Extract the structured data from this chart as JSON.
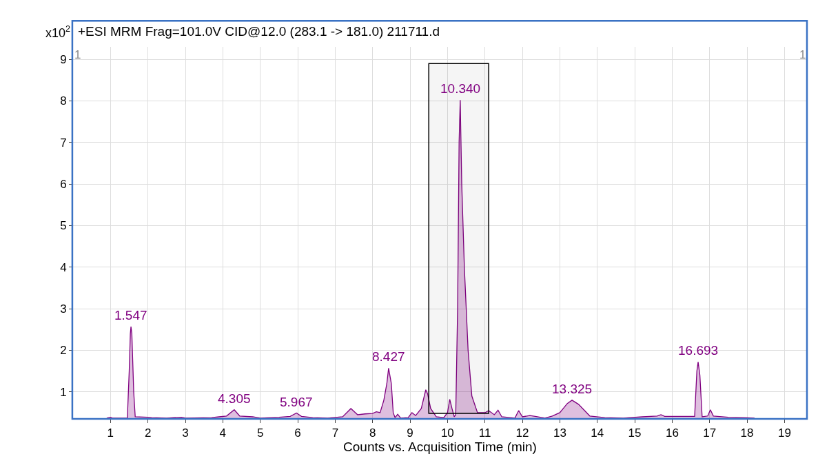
{
  "chart_data": {
    "type": "area",
    "title": "+ESI MRM Frag=101.0V CID@12.0 (283.1 -> 181.0) 211711.d",
    "xlabel": "Counts vs. Acquisition Time (min)",
    "ylabel": "x10$^{2}$",
    "x": [
      0.9,
      1.0,
      1.05,
      1.45,
      1.5,
      1.53,
      1.547,
      1.57,
      1.62,
      1.66,
      2.0,
      2.1,
      2.5,
      2.9,
      3.0,
      3.7,
      3.9,
      4.1,
      4.305,
      4.45,
      4.8,
      5.0,
      5.5,
      5.8,
      5.967,
      6.1,
      6.4,
      6.8,
      7.2,
      7.42,
      7.6,
      7.8,
      8.0,
      8.1,
      8.2,
      8.3,
      8.38,
      8.427,
      8.5,
      8.55,
      8.6,
      8.67,
      8.75,
      8.95,
      9.05,
      9.15,
      9.3,
      9.42,
      9.47,
      9.55,
      9.7,
      9.9,
      10.0,
      10.06,
      10.12,
      10.18,
      10.22,
      10.27,
      10.31,
      10.34,
      10.38,
      10.45,
      10.55,
      10.65,
      10.8,
      11.0,
      11.1,
      11.25,
      11.35,
      11.45,
      11.8,
      11.9,
      12.0,
      12.2,
      12.4,
      12.6,
      12.8,
      13.0,
      13.2,
      13.325,
      13.5,
      13.8,
      14.2,
      14.7,
      15.2,
      15.6,
      15.7,
      15.8,
      16.6,
      16.66,
      16.693,
      16.74,
      16.8,
      16.95,
      17.02,
      17.1,
      17.5,
      17.9,
      18.2
    ],
    "series": [
      {
        "color": "#800080",
        "values": [
          0.37,
          0.39,
          0.37,
          0.37,
          1.5,
          2.4,
          2.57,
          2.4,
          1.0,
          0.4,
          0.39,
          0.38,
          0.37,
          0.39,
          0.37,
          0.38,
          0.4,
          0.42,
          0.57,
          0.42,
          0.4,
          0.37,
          0.39,
          0.41,
          0.49,
          0.41,
          0.38,
          0.37,
          0.4,
          0.6,
          0.45,
          0.47,
          0.48,
          0.52,
          0.5,
          0.8,
          1.2,
          1.57,
          1.2,
          0.5,
          0.38,
          0.46,
          0.37,
          0.38,
          0.5,
          0.43,
          0.6,
          1.05,
          0.95,
          0.6,
          0.4,
          0.38,
          0.5,
          0.82,
          0.6,
          0.4,
          0.45,
          3.0,
          7.0,
          8.02,
          6.0,
          4.0,
          2.0,
          0.9,
          0.5,
          0.5,
          0.55,
          0.45,
          0.56,
          0.4,
          0.37,
          0.55,
          0.4,
          0.43,
          0.4,
          0.37,
          0.42,
          0.5,
          0.72,
          0.8,
          0.7,
          0.42,
          0.38,
          0.37,
          0.4,
          0.42,
          0.45,
          0.41,
          0.41,
          1.5,
          1.72,
          1.4,
          0.4,
          0.42,
          0.57,
          0.42,
          0.39,
          0.38,
          0.37
        ]
      }
    ],
    "xlim": [
      0,
      19.6
    ],
    "ylim": [
      0.35,
      9.3
    ],
    "xticks": [
      1,
      2,
      3,
      4,
      5,
      6,
      7,
      8,
      9,
      10,
      11,
      12,
      13,
      14,
      15,
      16,
      17,
      18,
      19
    ],
    "yticks": [
      1,
      2,
      3,
      4,
      5,
      6,
      7,
      8,
      9
    ],
    "grid": true,
    "legend": false,
    "bands": [
      {
        "axis": "x",
        "from": 9.5,
        "to": 11.1,
        "color": "#000000"
      }
    ],
    "annotations": [
      {
        "text": "1.547",
        "x": 1.547,
        "y": 2.57
      },
      {
        "text": "4.305",
        "x": 4.305,
        "y": 0.57
      },
      {
        "text": "5.967",
        "x": 5.967,
        "y": 0.49
      },
      {
        "text": "8.427",
        "x": 8.427,
        "y": 1.57
      },
      {
        "text": "10.340",
        "x": 10.34,
        "y": 8.02
      },
      {
        "text": "13.325",
        "x": 13.325,
        "y": 0.8
      },
      {
        "text": "16.693",
        "x": 16.693,
        "y": 1.72
      },
      "1",
      "1"
    ]
  }
}
